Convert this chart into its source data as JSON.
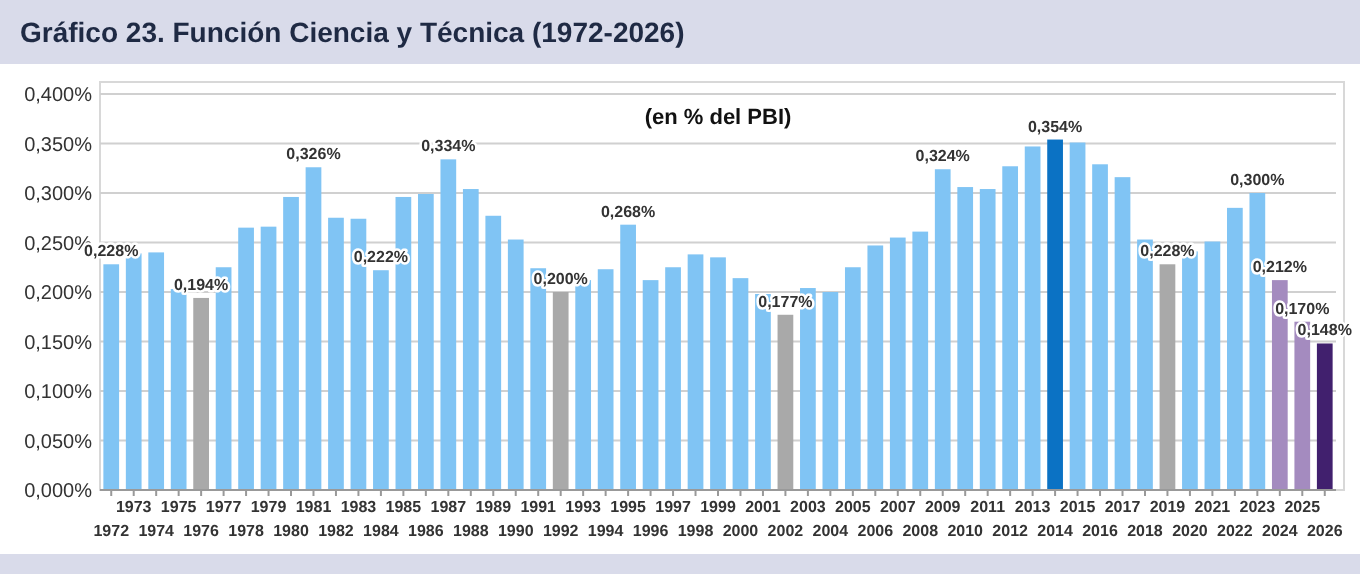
{
  "chart_data": {
    "type": "bar",
    "title": "Gráfico 23. Función Ciencia y Técnica (1972-2026)",
    "subtitle": "(en % del PBI)",
    "categories": [
      "1972",
      "1973",
      "1974",
      "1975",
      "1976",
      "1977",
      "1978",
      "1979",
      "1980",
      "1981",
      "1982",
      "1983",
      "1984",
      "1985",
      "1986",
      "1987",
      "1988",
      "1989",
      "1990",
      "1991",
      "1992",
      "1993",
      "1994",
      "1995",
      "1996",
      "1997",
      "1998",
      "1999",
      "2000",
      "2001",
      "2002",
      "2003",
      "2004",
      "2005",
      "2006",
      "2007",
      "2008",
      "2009",
      "2010",
      "2011",
      "2012",
      "2013",
      "2014",
      "2015",
      "2016",
      "2017",
      "2018",
      "2019",
      "2020",
      "2021",
      "2022",
      "2023",
      "2024",
      "2025",
      "2026"
    ],
    "values": [
      0.228,
      0.239,
      0.24,
      0.203,
      0.194,
      0.225,
      0.265,
      0.266,
      0.296,
      0.326,
      0.275,
      0.274,
      0.222,
      0.296,
      0.299,
      0.334,
      0.304,
      0.277,
      0.253,
      0.224,
      0.2,
      0.212,
      0.223,
      0.268,
      0.212,
      0.225,
      0.238,
      0.235,
      0.214,
      0.198,
      0.177,
      0.204,
      0.2,
      0.225,
      0.247,
      0.255,
      0.261,
      0.324,
      0.306,
      0.304,
      0.327,
      0.347,
      0.354,
      0.351,
      0.329,
      0.316,
      0.253,
      0.228,
      0.241,
      0.251,
      0.285,
      0.3,
      0.212,
      0.17,
      0.148
    ],
    "colors": [
      "#80c4f4",
      "#80c4f4",
      "#80c4f4",
      "#80c4f4",
      "#a9a9a9",
      "#80c4f4",
      "#80c4f4",
      "#80c4f4",
      "#80c4f4",
      "#80c4f4",
      "#80c4f4",
      "#80c4f4",
      "#80c4f4",
      "#80c4f4",
      "#80c4f4",
      "#80c4f4",
      "#80c4f4",
      "#80c4f4",
      "#80c4f4",
      "#80c4f4",
      "#a9a9a9",
      "#80c4f4",
      "#80c4f4",
      "#80c4f4",
      "#80c4f4",
      "#80c4f4",
      "#80c4f4",
      "#80c4f4",
      "#80c4f4",
      "#80c4f4",
      "#a9a9a9",
      "#80c4f4",
      "#80c4f4",
      "#80c4f4",
      "#80c4f4",
      "#80c4f4",
      "#80c4f4",
      "#80c4f4",
      "#80c4f4",
      "#80c4f4",
      "#80c4f4",
      "#80c4f4",
      "#0b72c4",
      "#80c4f4",
      "#80c4f4",
      "#80c4f4",
      "#80c4f4",
      "#a9a9a9",
      "#80c4f4",
      "#80c4f4",
      "#80c4f4",
      "#80c4f4",
      "#a48bbf",
      "#a48bbf",
      "#41206e"
    ],
    "value_labels": [
      "0,228%",
      null,
      null,
      null,
      "0,194%",
      null,
      null,
      null,
      null,
      "0,326%",
      null,
      null,
      "0,222%",
      null,
      null,
      "0,334%",
      null,
      null,
      null,
      null,
      "0,200%",
      null,
      null,
      "0,268%",
      null,
      null,
      null,
      null,
      null,
      null,
      "0,177%",
      null,
      null,
      null,
      null,
      null,
      null,
      "0,324%",
      null,
      null,
      null,
      null,
      "0,354%",
      null,
      null,
      null,
      null,
      "0,228%",
      null,
      null,
      null,
      "0,300%",
      "0,212%",
      "0,170%",
      "0,148%"
    ],
    "ylim": [
      0,
      0.4
    ],
    "yticks": [
      {
        "value": 0,
        "label": "0,000%"
      },
      {
        "value": 0.05,
        "label": "0,050%"
      },
      {
        "value": 0.1,
        "label": "0,100%"
      },
      {
        "value": 0.15,
        "label": "0,150%"
      },
      {
        "value": 0.2,
        "label": "0,200%"
      },
      {
        "value": 0.25,
        "label": "0,250%"
      },
      {
        "value": 0.3,
        "label": "0,300%"
      },
      {
        "value": 0.35,
        "label": "0,350%"
      },
      {
        "value": 0.4,
        "label": "0,400%"
      }
    ],
    "grid": "y"
  }
}
